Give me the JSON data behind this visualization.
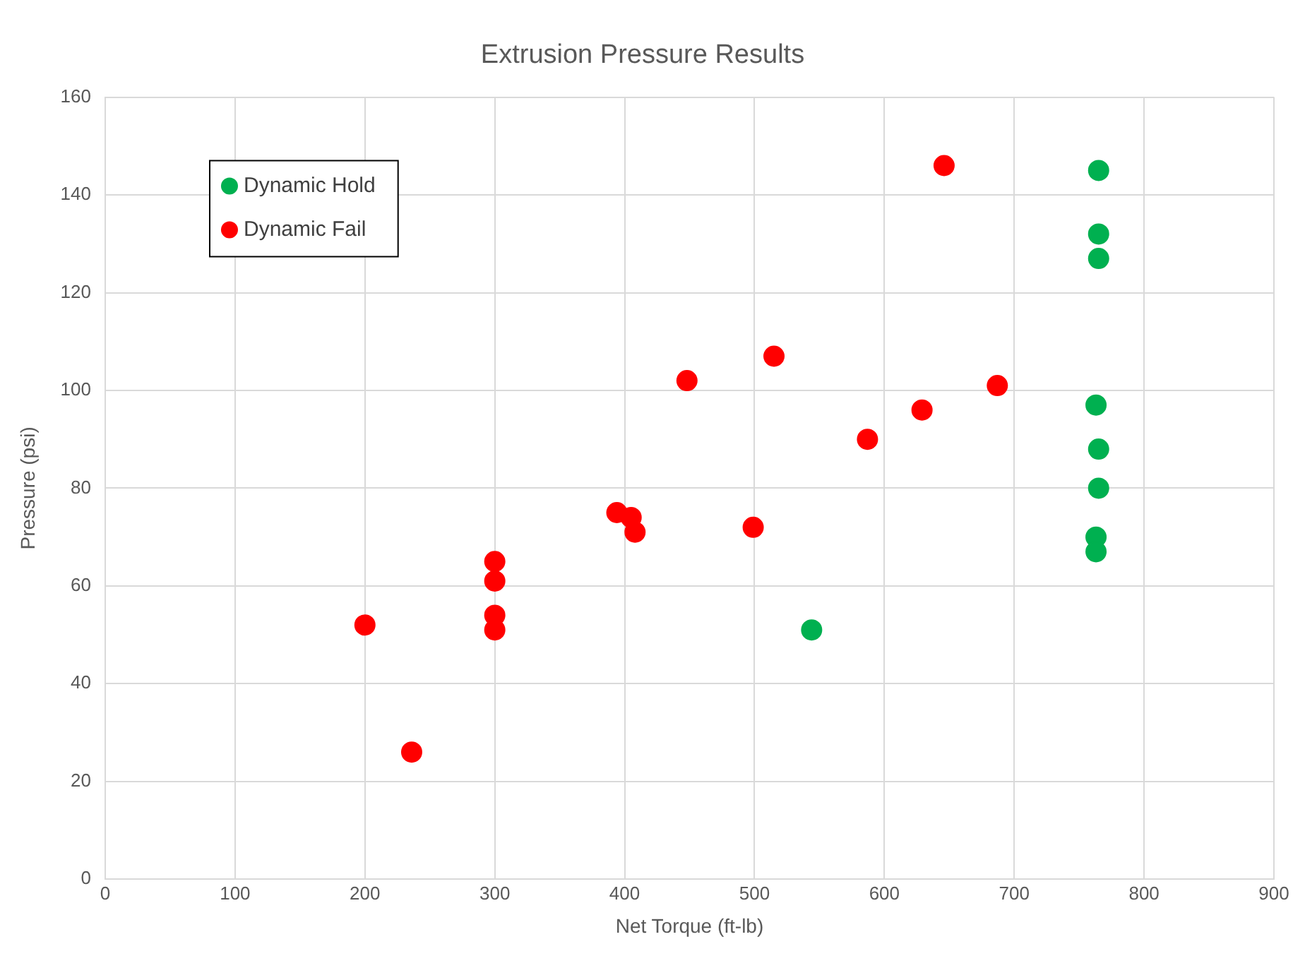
{
  "chart_data": {
    "type": "scatter",
    "title": "Extrusion Pressure Results",
    "xlabel": "Net Torque (ft-lb)",
    "ylabel": "Pressure (psi)",
    "series": [
      {
        "name": "Dynamic Hold",
        "color": "#00b050",
        "x": [
          765,
          765,
          765,
          763,
          765,
          765,
          763,
          763,
          544
        ],
        "values": [
          145,
          132,
          127,
          97,
          88,
          80,
          70,
          67,
          51
        ]
      },
      {
        "name": "Dynamic Fail",
        "color": "#ff0000",
        "x": [
          200,
          236,
          300,
          300,
          300,
          300,
          394,
          405,
          408,
          448,
          499,
          515,
          587,
          629,
          646,
          687
        ],
        "values": [
          52,
          26,
          65,
          61,
          54,
          51,
          75,
          74,
          71,
          102,
          72,
          107,
          90,
          96,
          146,
          101
        ]
      }
    ],
    "xlim": [
      0,
      900
    ],
    "xticks": [
      0,
      100,
      200,
      300,
      400,
      500,
      600,
      700,
      800,
      900
    ],
    "ylim": [
      0,
      160
    ],
    "yticks": [
      0,
      20,
      40,
      60,
      80,
      100,
      120,
      140,
      160
    ],
    "grid": true,
    "legend": "top left",
    "marker": "circle"
  }
}
